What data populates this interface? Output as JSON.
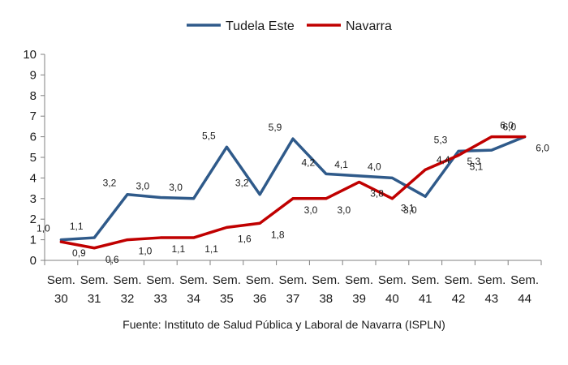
{
  "chart_data": {
    "type": "line",
    "title": "",
    "xlabel": "",
    "ylabel": "",
    "categories": [
      [
        "Sem.",
        "30"
      ],
      [
        "Sem.",
        "31"
      ],
      [
        "Sem.",
        "32"
      ],
      [
        "Sem.",
        "33"
      ],
      [
        "Sem.",
        "34"
      ],
      [
        "Sem.",
        "35"
      ],
      [
        "Sem.",
        "36"
      ],
      [
        "Sem.",
        "37"
      ],
      [
        "Sem.",
        "38"
      ],
      [
        "Sem.",
        "39"
      ],
      [
        "Sem.",
        "40"
      ],
      [
        "Sem.",
        "41"
      ],
      [
        "Sem.",
        "42"
      ],
      [
        "Sem.",
        "43"
      ],
      [
        "Sem.",
        "44"
      ]
    ],
    "ylim": [
      0,
      10
    ],
    "yticks": [
      "0",
      "1",
      "2",
      "3",
      "4",
      "5",
      "6",
      "7",
      "8",
      "9",
      "10"
    ],
    "grid": false,
    "legend_position": "top-center",
    "series": [
      {
        "name": "Tudela Este",
        "color": "#2f5a8a",
        "values": [
          1.0,
          1.1,
          3.2,
          3.05,
          3.0,
          5.5,
          3.2,
          5.9,
          4.2,
          4.1,
          4.0,
          3.1,
          5.3,
          5.35,
          6.0
        ],
        "labels": [
          "1,0",
          "1,1",
          "3,2",
          "3,0",
          "3,0",
          "5,5",
          "3,2",
          "5,9",
          "4,2",
          "4,1",
          "4,0",
          "3,1",
          "5,3",
          "5,3",
          "6,0"
        ]
      },
      {
        "name": "Navarra",
        "color": "#c00000",
        "values": [
          0.9,
          0.6,
          1.0,
          1.1,
          1.1,
          1.6,
          1.8,
          3.0,
          3.0,
          3.8,
          3.0,
          4.4,
          5.1,
          6.0,
          6.0
        ],
        "labels": [
          "0,9",
          "0,6",
          "1,0",
          "1,1",
          "1,1",
          "1,6",
          "1,8",
          "3,0",
          "3,0",
          "3,8",
          "3,0",
          "4,4",
          "5,1",
          "6,0",
          "6,0"
        ]
      }
    ]
  },
  "source": "Fuente: Instituto de Salud Pública y Laboral de Navarra (ISPLN)"
}
